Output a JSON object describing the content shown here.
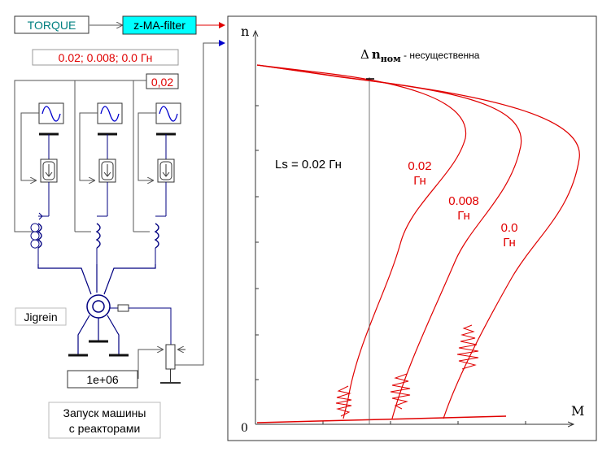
{
  "blocks": {
    "torque": "TORQUE",
    "filter": "z-MA-filter",
    "inductance_values": "0.02; 0.008; 0.0 Гн",
    "gain_value": "0,02",
    "machine_name": "Jigrein",
    "constant_value": "1e+06",
    "caption_line1": "Запуск машины",
    "caption_line2": "с реакторами"
  },
  "colors": {
    "torque_box": "#008080",
    "filter_fill": "#00ffff",
    "red": "#e00000",
    "wire": "#000080",
    "curve": "#e00000",
    "arrow_blue": "#0000cc"
  },
  "plot": {
    "y_axis_label": "n",
    "x_axis_label": "M",
    "origin_label": "0",
    "delta_symbol": "Δ",
    "delta_var": "n",
    "delta_sub": "ном",
    "delta_text": " - несущественна",
    "ls_label": "Ls = 0.02 Гн",
    "curve_labels": [
      {
        "value": "0.02",
        "unit": "Гн"
      },
      {
        "value": "0.008",
        "unit": "Гн"
      },
      {
        "value": "0.0",
        "unit": "Гн"
      }
    ]
  },
  "chart_data": {
    "type": "line",
    "xlabel": "M",
    "ylabel": "n",
    "series": [
      {
        "name": "0.02 Гн"
      },
      {
        "name": "0.008 Гн"
      },
      {
        "name": "0.0 Гн"
      }
    ]
  }
}
